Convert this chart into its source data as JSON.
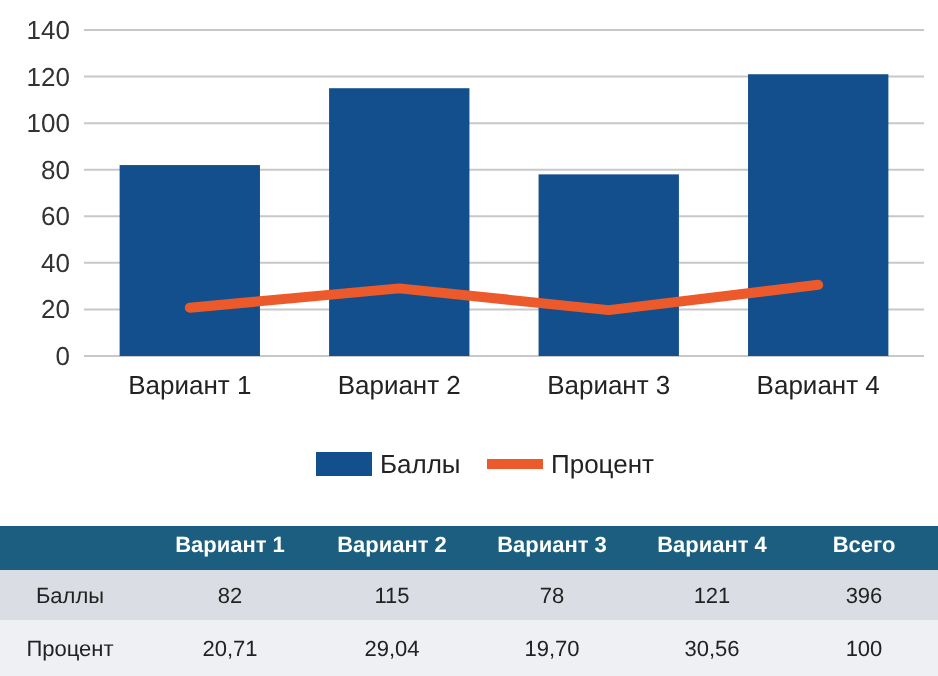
{
  "chart_data": {
    "type": "bar",
    "categories": [
      "Вариант 1",
      "Вариант 2",
      "Вариант 3",
      "Вариант 4"
    ],
    "series": [
      {
        "name": "Баллы",
        "color": "#134f8c",
        "values": [
          82,
          115,
          78,
          121
        ]
      },
      {
        "name": "Процент",
        "type": "line",
        "color": "#ec5a2b",
        "values": [
          20.71,
          29.04,
          19.7,
          30.56
        ]
      }
    ],
    "ylim": [
      0,
      140
    ],
    "yticks": [
      0,
      20,
      40,
      60,
      80,
      100,
      120,
      140
    ],
    "grid": "y",
    "legend": "bottom",
    "line_style": "solid",
    "marker": "none",
    "annotations": [
      "Всего",
      "82",
      "115",
      "78",
      "121",
      "396",
      "20,71",
      "29,04",
      "19,70",
      "30,56",
      "100"
    ]
  }
}
